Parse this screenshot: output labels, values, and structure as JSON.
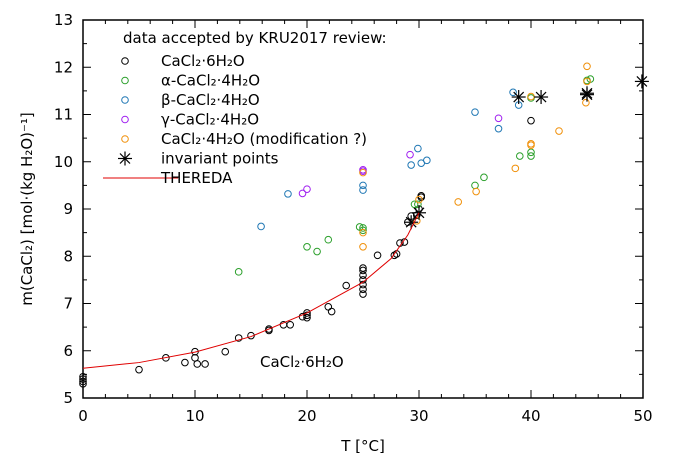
{
  "chart_data": {
    "type": "scatter",
    "xlabel": "T [°C]",
    "ylabel": "m(CaCl₂) [mol·(kg H₂O)⁻¹]",
    "xlim": [
      0,
      50
    ],
    "ylim": [
      5,
      13
    ],
    "xticks": [
      0,
      10,
      20,
      30,
      40,
      50
    ],
    "yticks": [
      5,
      6,
      7,
      8,
      9,
      10,
      11,
      12,
      13
    ],
    "grid": false,
    "legend_title": "data accepted by KRU2017 review:",
    "legend_placement": "top-left",
    "annotation": "CaCl₂·6H₂O",
    "series": [
      {
        "name": "CaCl₂·6H₂O",
        "color": "#000000",
        "marker": "circle",
        "points": [
          [
            0,
            5.3
          ],
          [
            0,
            5.35
          ],
          [
            0,
            5.4
          ],
          [
            0,
            5.45
          ],
          [
            5,
            5.6
          ],
          [
            7.4,
            5.85
          ],
          [
            9.1,
            5.75
          ],
          [
            10,
            5.98
          ],
          [
            10,
            5.85
          ],
          [
            10.2,
            5.72
          ],
          [
            10.9,
            5.72
          ],
          [
            12.7,
            5.98
          ],
          [
            13.9,
            6.27
          ],
          [
            15,
            6.32
          ],
          [
            16.6,
            6.43
          ],
          [
            16.6,
            6.46
          ],
          [
            17.9,
            6.55
          ],
          [
            18.5,
            6.55
          ],
          [
            19.6,
            6.72
          ],
          [
            20,
            6.7
          ],
          [
            20,
            6.75
          ],
          [
            20,
            6.8
          ],
          [
            21.9,
            6.93
          ],
          [
            22.2,
            6.83
          ],
          [
            23.5,
            7.38
          ],
          [
            25,
            7.2
          ],
          [
            25,
            7.3
          ],
          [
            25,
            7.4
          ],
          [
            25,
            7.5
          ],
          [
            25,
            7.6
          ],
          [
            25,
            7.7
          ],
          [
            25,
            7.75
          ],
          [
            26.3,
            8.02
          ],
          [
            27.8,
            8.02
          ],
          [
            28,
            8.05
          ],
          [
            28.3,
            8.28
          ],
          [
            28.7,
            8.3
          ],
          [
            29,
            8.72
          ],
          [
            29.3,
            8.85
          ],
          [
            29.8,
            8.87
          ],
          [
            30,
            9.0
          ],
          [
            30.2,
            9.25
          ],
          [
            30.2,
            9.28
          ],
          [
            40,
            10.87
          ]
        ]
      },
      {
        "name": "α-CaCl₂·4H₂O",
        "color": "#2ca02c",
        "marker": "circle",
        "points": [
          [
            13.9,
            7.67
          ],
          [
            20,
            8.2
          ],
          [
            20.9,
            8.1
          ],
          [
            21.9,
            8.35
          ],
          [
            24.7,
            8.62
          ],
          [
            25,
            8.6
          ],
          [
            25,
            8.55
          ],
          [
            29.6,
            9.1
          ],
          [
            29.9,
            9.1
          ],
          [
            35,
            9.5
          ],
          [
            35.8,
            9.67
          ],
          [
            39,
            10.12
          ],
          [
            40,
            10.12
          ],
          [
            40,
            10.2
          ],
          [
            40,
            11.35
          ],
          [
            45,
            11.72
          ],
          [
            45.3,
            11.75
          ]
        ]
      },
      {
        "name": "β-CaCl₂·4H₂O",
        "color": "#1f77b4",
        "marker": "circle",
        "points": [
          [
            15.9,
            8.63
          ],
          [
            18.3,
            9.32
          ],
          [
            25,
            9.4
          ],
          [
            25,
            9.5
          ],
          [
            29.3,
            9.93
          ],
          [
            29.9,
            10.28
          ],
          [
            30.2,
            9.97
          ],
          [
            30.7,
            10.03
          ],
          [
            35,
            11.05
          ],
          [
            37.1,
            10.7
          ],
          [
            38.4,
            11.47
          ],
          [
            38.9,
            11.2
          ]
        ]
      },
      {
        "name": "γ-CaCl₂·4H₂O",
        "color": "#a020f0",
        "marker": "circle",
        "points": [
          [
            19.6,
            9.33
          ],
          [
            20,
            9.42
          ],
          [
            25,
            9.8
          ],
          [
            25,
            9.83
          ],
          [
            29.2,
            10.15
          ],
          [
            37.1,
            10.92
          ]
        ]
      },
      {
        "name": "CaCl₂·4H₂O (modification ?)",
        "color": "#f0900a",
        "marker": "circle",
        "points": [
          [
            25,
            9.77
          ],
          [
            25,
            8.5
          ],
          [
            25,
            8.2
          ],
          [
            29.8,
            8.75
          ],
          [
            30,
            9.2
          ],
          [
            33.5,
            9.15
          ],
          [
            35.1,
            9.37
          ],
          [
            38.6,
            9.86
          ],
          [
            40,
            10.38
          ],
          [
            40,
            10.35
          ],
          [
            40,
            11.38
          ],
          [
            42.5,
            10.65
          ],
          [
            44.9,
            11.25
          ],
          [
            45,
            11.7
          ],
          [
            45,
            12.02
          ]
        ]
      },
      {
        "name": "invariant points",
        "color": "#000000",
        "marker": "star",
        "points": [
          [
            29.3,
            8.72
          ],
          [
            30,
            8.92
          ],
          [
            38.9,
            11.37
          ],
          [
            40.9,
            11.37
          ],
          [
            45,
            11.42
          ],
          [
            45,
            11.45
          ],
          [
            49.9,
            11.7
          ]
        ]
      },
      {
        "name": "THEREDA",
        "color": "#e00000",
        "marker": "line",
        "points": [
          [
            0,
            5.63
          ],
          [
            5,
            5.75
          ],
          [
            10,
            5.97
          ],
          [
            15,
            6.3
          ],
          [
            20,
            6.8
          ],
          [
            25,
            7.45
          ],
          [
            27.5,
            7.95
          ],
          [
            29,
            8.45
          ],
          [
            30,
            8.92
          ]
        ]
      }
    ]
  }
}
